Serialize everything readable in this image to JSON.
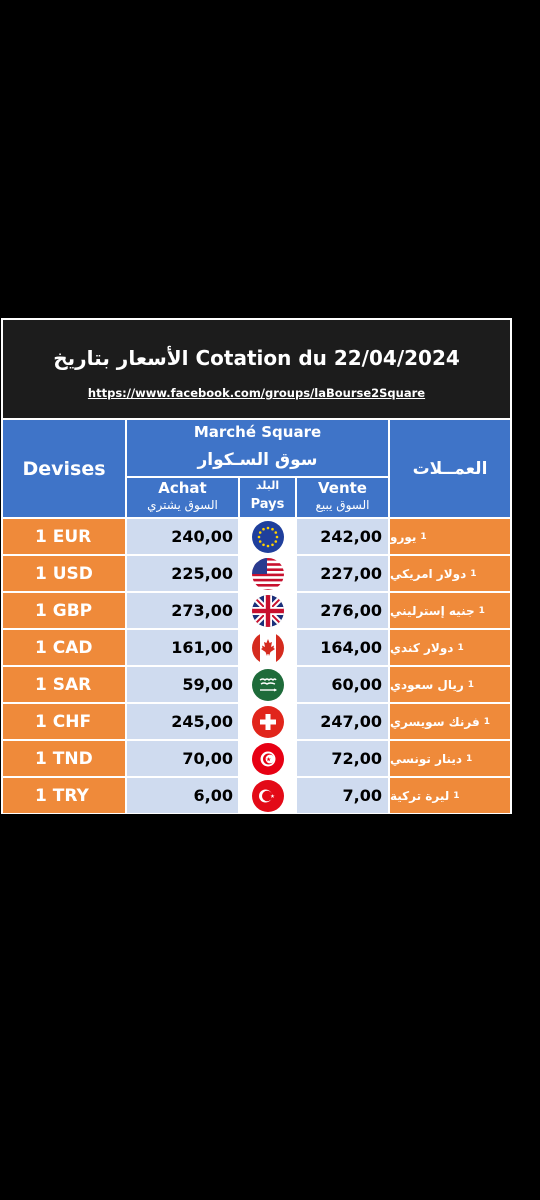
{
  "header": {
    "title": "الأسعار بتاريخ Cotation du 22/04/2024",
    "url": "https://www.facebook.com/groups/laBourse2Square"
  },
  "table": {
    "devises_label": "Devises",
    "market_fr": "Marché Square",
    "market_ar": "سوق السـكوار",
    "currencies_ar": "العمــلات",
    "achat_fr": "Achat",
    "achat_ar": "السوق يشتري",
    "pays_ar": "البلد",
    "pays_fr": "Pays",
    "vente_fr": "Vente",
    "vente_ar": "السوق يبيع"
  },
  "rows": [
    {
      "code": "1 EUR",
      "achat": "240,00",
      "vente": "242,00",
      "name": "يورو",
      "qty": "1",
      "flag": "eu-flag-icon"
    },
    {
      "code": "1 USD",
      "achat": "225,00",
      "vente": "227,00",
      "name": "دولار امريكي",
      "qty": "1",
      "flag": "us-flag-icon"
    },
    {
      "code": "1 GBP",
      "achat": "273,00",
      "vente": "276,00",
      "name": "جنيه إسترليني",
      "qty": "1",
      "flag": "uk-flag-icon"
    },
    {
      "code": "1 CAD",
      "achat": "161,00",
      "vente": "164,00",
      "name": "دولار كندي",
      "qty": "1",
      "flag": "canada-flag-icon"
    },
    {
      "code": "1 SAR",
      "achat": "59,00",
      "vente": "60,00",
      "name": "ريال سعودي",
      "qty": "1",
      "flag": "saudi-flag-icon"
    },
    {
      "code": "1 CHF",
      "achat": "245,00",
      "vente": "247,00",
      "name": "فرنك سويسري",
      "qty": "1",
      "flag": "swiss-flag-icon"
    },
    {
      "code": "1 TND",
      "achat": "70,00",
      "vente": "72,00",
      "name": "دينار تونسي",
      "qty": "1",
      "flag": "tunisia-flag-icon"
    },
    {
      "code": "1 TRY",
      "achat": "6,00",
      "vente": "7,00",
      "name": "ليرة تركية",
      "qty": "1",
      "flag": "turkey-flag-icon"
    }
  ],
  "colors": {
    "header_blue": "#3f74c8",
    "currency_orange": "#ef8a3a",
    "value_lightblue": "#cfdbef",
    "title_bg": "#1c1c1c"
  }
}
